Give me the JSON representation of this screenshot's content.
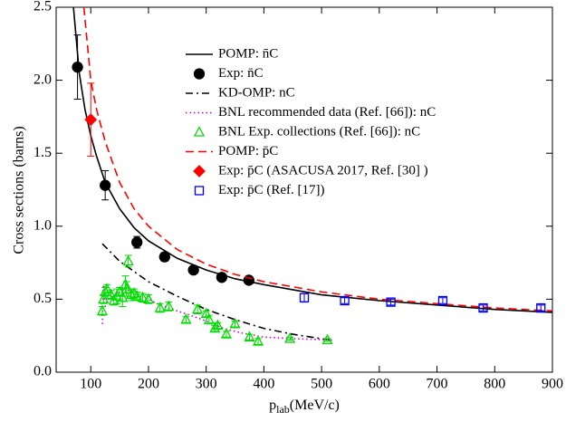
{
  "chart_data": {
    "type": "scatter-line",
    "ylabel": "Cross sections (barns)",
    "xlabel": {
      "main": "p",
      "sub": "lab",
      "unit": "(MeV/c)"
    },
    "xlim": [
      40,
      900
    ],
    "xticks": [
      100,
      200,
      300,
      400,
      500,
      600,
      700,
      800,
      900
    ],
    "ylim": [
      0,
      2.5
    ],
    "yticks": [
      {
        "value": 0,
        "label": "0.0"
      },
      0.5,
      {
        "value": 1,
        "label": "1.0"
      },
      1.5,
      {
        "value": 2,
        "label": "2.0"
      },
      2.5
    ],
    "legend": "upper center",
    "series": [
      {
        "name": "POMP: n̄C",
        "color": "#000000",
        "style": "solid",
        "x": [
          70,
          80,
          90,
          100,
          110,
          125,
          150,
          175,
          200,
          250,
          300,
          350,
          400,
          500,
          600,
          700,
          800,
          900
        ],
        "values": [
          2.5,
          2.05,
          1.8,
          1.62,
          1.48,
          1.3,
          1.12,
          0.99,
          0.9,
          0.78,
          0.7,
          0.64,
          0.6,
          0.53,
          0.49,
          0.46,
          0.43,
          0.41
        ]
      },
      {
        "name": "Exp: n̄C",
        "color": "#000000",
        "marker": "circle",
        "x": [
          77,
          125,
          180,
          228,
          278,
          327,
          374
        ],
        "values": [
          2.09,
          1.28,
          0.89,
          0.79,
          0.7,
          0.65,
          0.63
        ],
        "errors": [
          0.22,
          0.1,
          0.04,
          0.03,
          0.02,
          0.02,
          0.02
        ]
      },
      {
        "name": "KD-OMP: nC",
        "color": "#000000",
        "style": "dashdot",
        "x": [
          120,
          150,
          200,
          250,
          300,
          350,
          400,
          450,
          515
        ],
        "values": [
          0.88,
          0.76,
          0.62,
          0.52,
          0.43,
          0.36,
          0.3,
          0.26,
          0.22
        ]
      },
      {
        "name": "BNL recommended data (Ref. [66]): nC",
        "color": "#cc00cc",
        "style": "dotted",
        "x": [
          120,
          122,
          125,
          130,
          140,
          150,
          160,
          170,
          180,
          200,
          220,
          250,
          280,
          300,
          330,
          360,
          400,
          450,
          520
        ],
        "values": [
          0.33,
          0.6,
          0.45,
          0.5,
          0.52,
          0.55,
          0.58,
          0.54,
          0.52,
          0.5,
          0.46,
          0.42,
          0.38,
          0.35,
          0.3,
          0.27,
          0.24,
          0.23,
          0.22
        ]
      },
      {
        "name": "BNL Exp. collections (Ref. [66]): nC",
        "color": "#00dd00",
        "marker": "triangle",
        "x": [
          120,
          122,
          125,
          128,
          135,
          140,
          145,
          150,
          155,
          160,
          162,
          165,
          170,
          175,
          180,
          190,
          200,
          220,
          235,
          265,
          285,
          300,
          305,
          315,
          320,
          335,
          350,
          375,
          390,
          445,
          510
        ],
        "values": [
          0.42,
          0.5,
          0.55,
          0.57,
          0.53,
          0.49,
          0.52,
          0.55,
          0.51,
          0.6,
          0.57,
          0.76,
          0.53,
          0.54,
          0.52,
          0.51,
          0.5,
          0.44,
          0.45,
          0.36,
          0.43,
          0.4,
          0.36,
          0.3,
          0.32,
          0.26,
          0.33,
          0.24,
          0.21,
          0.23,
          0.22
        ],
        "errors": [
          0.03,
          0.03,
          0.03,
          0.03,
          0.03,
          0.03,
          0.05,
          0.03,
          0.06,
          0.06,
          0.05,
          0.04,
          0.04,
          0.03,
          0.03,
          0.03,
          0.03,
          0.03,
          0.03,
          0.02,
          0.03,
          0.02,
          0.03,
          0.02,
          0.02,
          0.02,
          0.02,
          0.02,
          0.02,
          0.01,
          0.01
        ]
      },
      {
        "name": "POMP: p̄C",
        "color": "#ff0000",
        "style": "dashed",
        "x": [
          88,
          100,
          110,
          125,
          150,
          175,
          200,
          250,
          300,
          350,
          400,
          500,
          600,
          700,
          800,
          900
        ],
        "values": [
          2.5,
          2.0,
          1.8,
          1.58,
          1.3,
          1.12,
          1.0,
          0.84,
          0.74,
          0.67,
          0.62,
          0.55,
          0.5,
          0.47,
          0.44,
          0.42
        ]
      },
      {
        "name": "Exp: p̄C (ASACUSA 2017, Ref. [30] )",
        "color": "#ff0000",
        "marker": "diamond",
        "x": [
          100
        ],
        "values": [
          1.73
        ],
        "errors": [
          0.25
        ]
      },
      {
        "name": "Exp: p̄C (Ref. [17])",
        "color": "#0000ff",
        "marker": "square",
        "x": [
          470,
          540,
          620,
          710,
          780,
          880
        ],
        "values": [
          0.51,
          0.49,
          0.48,
          0.49,
          0.44,
          0.44
        ],
        "errors": [
          0.03,
          0.02,
          0.02,
          0.02,
          0.02,
          0.02
        ]
      }
    ]
  }
}
